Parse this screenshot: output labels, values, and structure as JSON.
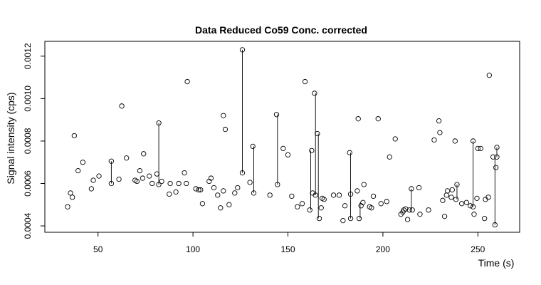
{
  "chart_data": {
    "type": "scatter",
    "title": "Data Reduced Co59 Conc. corrected",
    "xlabel": "Time (s)",
    "ylabel": "Signal intensity (cps)",
    "xlim": [
      22,
      272
    ],
    "ylim": [
      0.00037,
      0.00127
    ],
    "xticks": [
      50,
      100,
      150,
      200,
      250
    ],
    "xtick_labels": [
      "50",
      "100",
      "150",
      "200",
      "250"
    ],
    "yticks": [
      0.0004,
      0.0006,
      0.0008,
      0.001,
      0.0012
    ],
    "ytick_labels": [
      "0.0004",
      "0.0006",
      "0.0008",
      "0.0010",
      "0.0012"
    ],
    "grid": false,
    "points": [
      [
        34,
        0.00049
      ],
      [
        35.5,
        0.000555
      ],
      [
        36.5,
        0.000535
      ],
      [
        37.5,
        0.000825
      ],
      [
        39.5,
        0.00066
      ],
      [
        42,
        0.0007
      ],
      [
        46.5,
        0.000575
      ],
      [
        47.5,
        0.000615
      ],
      [
        50.5,
        0.000635
      ],
      [
        57,
        0.000705
      ],
      [
        57,
        0.0006
      ],
      [
        61,
        0.00062
      ],
      [
        62.5,
        0.000965
      ],
      [
        65,
        0.00072
      ],
      [
        69.5,
        0.000615
      ],
      [
        70.5,
        0.00061
      ],
      [
        72,
        0.00066
      ],
      [
        73.5,
        0.000625
      ],
      [
        74,
        0.00074
      ],
      [
        77,
        0.000635
      ],
      [
        78.5,
        0.0006
      ],
      [
        81,
        0.000645
      ],
      [
        82,
        0.000885
      ],
      [
        82,
        0.000595
      ],
      [
        83.5,
        0.00061
      ],
      [
        87.5,
        0.00055
      ],
      [
        88,
        0.0006
      ],
      [
        91,
        0.00056
      ],
      [
        92.5,
        0.0006
      ],
      [
        95.5,
        0.00065
      ],
      [
        96.5,
        0.0006
      ],
      [
        97,
        0.00108
      ],
      [
        101.5,
        0.000575
      ],
      [
        103,
        0.00057
      ],
      [
        104,
        0.00057
      ],
      [
        105,
        0.000505
      ],
      [
        108.5,
        0.00061
      ],
      [
        109.5,
        0.000625
      ],
      [
        111,
        0.00058
      ],
      [
        113,
        0.000545
      ],
      [
        114.5,
        0.000485
      ],
      [
        116,
        0.00092
      ],
      [
        116,
        0.000565
      ],
      [
        117,
        0.000855
      ],
      [
        119,
        0.0005
      ],
      [
        122,
        0.000555
      ],
      [
        123.5,
        0.00058
      ],
      [
        126,
        0.00123
      ],
      [
        126,
        0.00065
      ],
      [
        130,
        0.000605
      ],
      [
        131.5,
        0.000775
      ],
      [
        132,
        0.000555
      ],
      [
        140.5,
        0.000545
      ],
      [
        144,
        0.000925
      ],
      [
        144.5,
        0.000595
      ],
      [
        147.5,
        0.000765
      ],
      [
        150,
        0.000735
      ],
      [
        152,
        0.00054
      ],
      [
        155,
        0.00049
      ],
      [
        157.5,
        0.000505
      ],
      [
        159,
        0.00108
      ],
      [
        161.5,
        0.000475
      ],
      [
        162.5,
        0.000755
      ],
      [
        163,
        0.000555
      ],
      [
        164,
        0.001025
      ],
      [
        164.5,
        0.000545
      ],
      [
        165.5,
        0.000835
      ],
      [
        166.5,
        0.000435
      ],
      [
        167.5,
        0.000485
      ],
      [
        168,
        0.00053
      ],
      [
        169,
        0.000525
      ],
      [
        174,
        0.000545
      ],
      [
        177,
        0.000545
      ],
      [
        179,
        0.000425
      ],
      [
        180,
        0.000495
      ],
      [
        182.5,
        0.000745
      ],
      [
        183,
        0.00055
      ],
      [
        183,
        0.000435
      ],
      [
        186.5,
        0.000565
      ],
      [
        187,
        0.000905
      ],
      [
        187.5,
        0.000435
      ],
      [
        188.5,
        0.000495
      ],
      [
        189.5,
        0.00051
      ],
      [
        190,
        0.000595
      ],
      [
        193,
        0.00049
      ],
      [
        194,
        0.000485
      ],
      [
        195,
        0.00054
      ],
      [
        197.5,
        0.000905
      ],
      [
        199,
        0.000505
      ],
      [
        202,
        0.000515
      ],
      [
        203.5,
        0.000725
      ],
      [
        206.5,
        0.00081
      ],
      [
        209.5,
        0.000455
      ],
      [
        210.5,
        0.000465
      ],
      [
        211,
        0.000475
      ],
      [
        212,
        0.00048
      ],
      [
        213,
        0.00043
      ],
      [
        214,
        0.000475
      ],
      [
        215,
        0.000575
      ],
      [
        215.5,
        0.000475
      ],
      [
        219,
        0.00058
      ],
      [
        219.5,
        0.000455
      ],
      [
        224,
        0.000475
      ],
      [
        227,
        0.000805
      ],
      [
        229.5,
        0.000895
      ],
      [
        230,
        0.00084
      ],
      [
        231.5,
        0.00052
      ],
      [
        232.5,
        0.000445
      ],
      [
        233.5,
        0.000545
      ],
      [
        234,
        0.000565
      ],
      [
        236,
        0.000535
      ],
      [
        236.5,
        0.00057
      ],
      [
        238,
        0.0008
      ],
      [
        238.5,
        0.000525
      ],
      [
        239,
        0.000595
      ],
      [
        241.5,
        0.000505
      ],
      [
        244,
        0.00051
      ],
      [
        246,
        0.000495
      ],
      [
        247.5,
        0.0008
      ],
      [
        247.5,
        0.00049
      ],
      [
        248,
        0.000455
      ],
      [
        249.5,
        0.00053
      ],
      [
        250,
        0.000765
      ],
      [
        251.5,
        0.000765
      ],
      [
        253.5,
        0.000435
      ],
      [
        254,
        0.000525
      ],
      [
        255.5,
        0.000535
      ],
      [
        256,
        0.00111
      ],
      [
        258,
        0.000725
      ],
      [
        259,
        0.000405
      ],
      [
        259.5,
        0.000675
      ],
      [
        260,
        0.000725
      ],
      [
        260,
        0.00077
      ]
    ],
    "segments": [
      [
        57,
        0.0006,
        57,
        0.000705
      ],
      [
        82,
        0.000595,
        82,
        0.000885
      ],
      [
        126,
        0.00065,
        126,
        0.00123
      ],
      [
        132,
        0.000555,
        132,
        0.000775
      ],
      [
        144.5,
        0.000595,
        144.5,
        0.000925
      ],
      [
        162,
        0.000475,
        162,
        0.000755
      ],
      [
        164.5,
        0.000545,
        164.5,
        0.001025
      ],
      [
        166,
        0.000435,
        166,
        0.000835
      ],
      [
        183,
        0.000435,
        183,
        0.000745
      ],
      [
        188,
        0.000435,
        188,
        0.00051
      ],
      [
        215,
        0.000475,
        215,
        0.000575
      ],
      [
        239,
        0.000525,
        239,
        0.000595
      ],
      [
        247.5,
        0.00049,
        247.5,
        0.0008
      ],
      [
        259,
        0.000405,
        259,
        0.000725
      ],
      [
        260,
        0.000725,
        260,
        0.00077
      ]
    ]
  }
}
